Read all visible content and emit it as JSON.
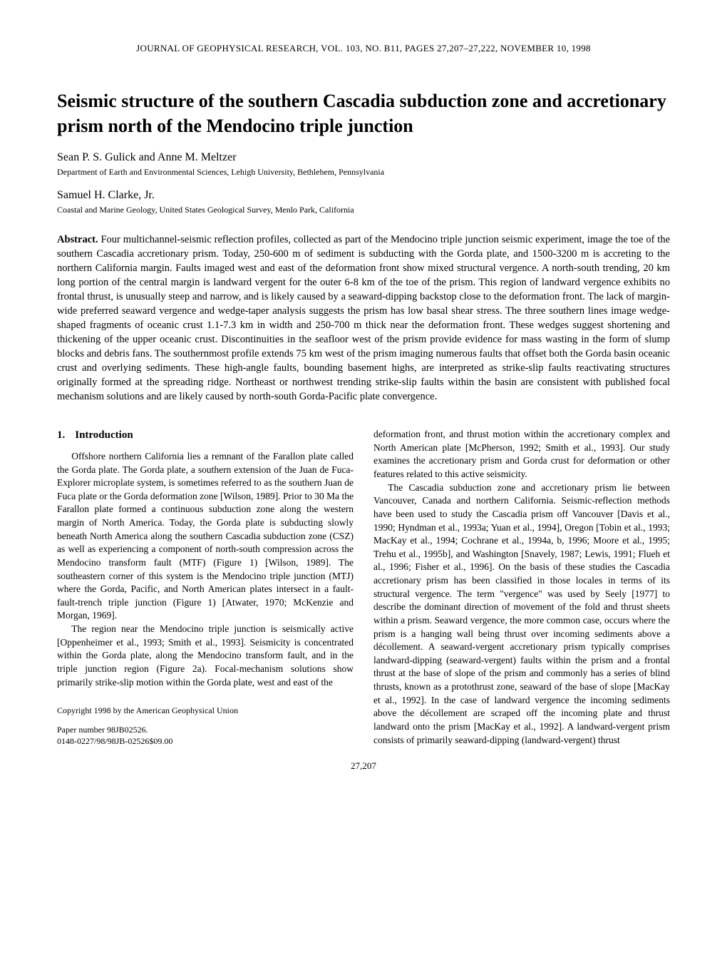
{
  "journal_header": "JOURNAL OF GEOPHYSICAL RESEARCH, VOL. 103, NO. B11, PAGES 27,207–27,222, NOVEMBER 10, 1998",
  "title": "Seismic structure of the southern Cascadia subduction zone and accretionary prism north of the Mendocino triple junction",
  "authors": [
    {
      "names": "Sean P. S. Gulick and Anne M. Meltzer",
      "affiliation": "Department of Earth and Environmental Sciences, Lehigh University, Bethlehem, Pennsylvania"
    },
    {
      "names": "Samuel H. Clarke, Jr.",
      "affiliation": "Coastal and Marine Geology, United States Geological Survey, Menlo Park, California"
    }
  ],
  "abstract_label": "Abstract.",
  "abstract_body": "Four multichannel-seismic reflection profiles, collected as part of the Mendocino triple junction seismic experiment, image the toe of the southern Cascadia accretionary prism. Today, 250-600 m of sediment is subducting with the Gorda plate, and 1500-3200 m is accreting to the northern California margin. Faults imaged west and east of the deformation front show mixed structural vergence. A north-south trending, 20 km long portion of the central margin is landward vergent for the outer 6-8 km of the toe of the prism. This region of landward vergence exhibits no frontal thrust, is unusually steep and narrow, and is likely caused by a seaward-dipping backstop close to the deformation front. The lack of margin-wide preferred seaward vergence and wedge-taper analysis suggests the prism has low basal shear stress. The three southern lines image wedge-shaped fragments of oceanic crust 1.1-7.3 km in width and 250-700 m thick near the deformation front. These wedges suggest shortening and thickening of the upper oceanic crust. Discontinuities in the seafloor west of the prism provide evidence for mass wasting in the form of slump blocks and debris fans. The southernmost profile extends 75 km west of the prism imaging numerous faults that offset both the Gorda basin oceanic crust and overlying sediments. These high-angle faults, bounding basement highs, are interpreted as strike-slip faults reactivating structures originally formed at the spreading ridge. Northeast or northwest trending strike-slip faults within the basin are consistent with published focal mechanism solutions and are likely caused by north-south Gorda-Pacific plate convergence.",
  "section": {
    "number": "1.",
    "title": "Introduction"
  },
  "left_column": {
    "p1": "Offshore northern California lies a remnant of the Farallon plate called the Gorda plate. The Gorda plate, a southern extension of the Juan de Fuca-Explorer microplate system, is sometimes referred to as the southern Juan de Fuca plate or the Gorda deformation zone [Wilson, 1989]. Prior to 30 Ma the Farallon plate formed a continuous subduction zone along the western margin of North America. Today, the Gorda plate is subducting slowly beneath North America along the southern Cascadia subduction zone (CSZ) as well as experiencing a component of north-south compression across the Mendocino transform fault (MTF) (Figure 1) [Wilson, 1989]. The southeastern corner of this system is the Mendocino triple junction (MTJ) where the Gorda, Pacific, and North American plates intersect in a fault-fault-trench triple junction (Figure 1) [Atwater, 1970; McKenzie and Morgan, 1969].",
    "p2": "The region near the Mendocino triple junction is seismically active [Oppenheimer et al., 1993; Smith et al., 1993]. Seismicity is concentrated within the Gorda plate, along the Mendocino transform fault, and in the triple junction region (Figure 2a). Focal-mechanism solutions show primarily strike-slip motion within the Gorda plate, west and east of the"
  },
  "copyright": "Copyright 1998 by the American Geophysical Union",
  "paper_number": "Paper number 98JB02526.",
  "issn_line": "0148-0227/98/98JB-02526$09.00",
  "right_column": {
    "p1": "deformation front, and thrust motion within the accretionary complex and North American plate [McPherson, 1992; Smith et al., 1993]. Our study examines the accretionary prism and Gorda crust for deformation or other features related to this active seismicity.",
    "p2": "The Cascadia subduction zone and accretionary prism lie between Vancouver, Canada and northern California. Seismic-reflection methods have been used to study the Cascadia prism off Vancouver [Davis et al., 1990; Hyndman et al., 1993a; Yuan et al., 1994], Oregon [Tobin et al., 1993; MacKay et al., 1994; Cochrane et al., 1994a, b, 1996; Moore et al., 1995; Trehu et al., 1995b], and Washington [Snavely, 1987; Lewis, 1991; Flueh et al., 1996; Fisher et al., 1996]. On the basis of these studies the Cascadia accretionary prism has been classified in those locales in terms of its structural vergence. The term \"vergence\" was used by Seely [1977] to describe the dominant direction of movement of the fold and thrust sheets within a prism. Seaward vergence, the more common case, occurs where the prism is a hanging wall being thrust over incoming sediments above a décollement. A seaward-vergent accretionary prism typically comprises landward-dipping (seaward-vergent) faults within the prism and a frontal thrust at the base of slope of the prism and commonly has a series of blind thrusts, known as a protothrust zone, seaward of the base of slope [MacKay et al., 1992]. In the case of landward vergence the incoming sediments above the décollement are scraped off the incoming plate and thrust landward onto the prism [MacKay et al., 1992]. A landward-vergent prism consists of primarily seaward-dipping (landward-vergent) thrust"
  },
  "page_number": "27,207"
}
